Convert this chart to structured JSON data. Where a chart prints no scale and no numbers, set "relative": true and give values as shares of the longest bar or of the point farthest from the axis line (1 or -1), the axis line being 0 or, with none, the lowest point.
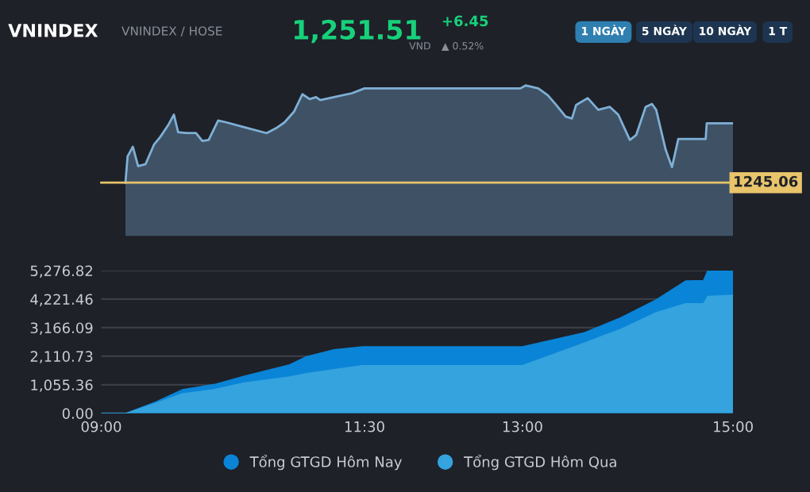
{
  "chart_data": [
    {
      "type": "area",
      "title": "VNINDEX",
      "subtitle": "VNINDEX / HOSE",
      "annotations": [
        "1,251.51",
        "VND",
        "+6.45",
        "▲ 0.52%",
        "1 NGÀY",
        "5 NGÀY",
        "10 NGÀY",
        "1 T",
        "1245.06"
      ],
      "x": [
        9.23,
        9.25,
        9.3,
        9.35,
        9.42,
        9.5,
        9.56,
        9.64,
        9.69,
        9.73,
        9.81,
        9.9,
        9.96,
        10.02,
        10.11,
        10.19,
        10.36,
        10.57,
        10.66,
        10.74,
        10.83,
        10.91,
        10.98,
        11.04,
        11.08,
        11.21,
        11.38,
        11.5,
        12.98,
        13.03,
        13.15,
        13.24,
        13.32,
        13.41,
        13.47,
        13.51,
        13.62,
        13.72,
        13.83,
        13.91,
        14.02,
        14.08,
        14.17,
        14.23,
        14.27,
        14.36,
        14.42,
        14.48,
        14.74,
        14.75,
        15.0
      ],
      "series": [
        {
          "color": "#7fb0d6",
          "values": [
            0,
            0.27,
            0.37,
            0.17,
            0.19,
            0.39,
            0.47,
            0.6,
            0.7,
            0.52,
            0.51,
            0.51,
            0.43,
            0.44,
            0.64,
            0.62,
            0.57,
            0.51,
            0.56,
            0.62,
            0.73,
            0.91,
            0.86,
            0.88,
            0.85,
            0.88,
            0.92,
            0.97,
            0.97,
            1.0,
            0.97,
            0.9,
            0.8,
            0.68,
            0.66,
            0.8,
            0.87,
            0.75,
            0.78,
            0.7,
            0.44,
            0.49,
            0.78,
            0.81,
            0.75,
            0.34,
            0.16,
            0.45,
            0.45,
            0.61,
            0.61
          ]
        }
      ],
      "xlim": [
        9,
        15
      ],
      "relative": true
    },
    {
      "type": "area",
      "x": [
        9.0,
        9.24,
        9.52,
        9.77,
        10.07,
        10.36,
        10.79,
        10.95,
        11.21,
        11.48,
        13.0,
        13.59,
        13.93,
        14.27,
        14.55,
        14.72,
        14.76,
        15.0
      ],
      "series": [
        {
          "name": "Tổng GTGD Hôm Nay",
          "color": "#0a84d6",
          "values": [
            0,
            0,
            420,
            870,
            1060,
            1370,
            1790,
            2090,
            2350,
            2460,
            2460,
            2980,
            3520,
            4190,
            4890,
            4910,
            5270,
            5270
          ]
        },
        {
          "name": "Tổng GTGD Hôm Qua",
          "color": "#34a3de",
          "values": [
            0,
            0,
            370,
            720,
            870,
            1120,
            1340,
            1470,
            1610,
            1760,
            1760,
            2600,
            3100,
            3720,
            4050,
            4050,
            4320,
            4360
          ]
        }
      ],
      "xlim": [
        9,
        15
      ],
      "ylim": [
        0,
        5276.82
      ],
      "xticks": [
        {
          "value": 9,
          "label": "09:00"
        },
        {
          "value": 11.5,
          "label": "11:30"
        },
        {
          "value": 13,
          "label": "13:00"
        },
        {
          "value": 15,
          "label": "15:00"
        }
      ],
      "yticks": [
        {
          "value": 0,
          "label": "0.00"
        },
        {
          "value": 1055.36,
          "label": "1,055.36"
        },
        {
          "value": 2110.73,
          "label": "2,110.73"
        },
        {
          "value": 3166.09,
          "label": "3,166.09"
        },
        {
          "value": 4221.46,
          "label": "4,221.46"
        },
        {
          "value": 5276.82,
          "label": "5,276.82"
        }
      ],
      "grid": "y",
      "legend": "bottom"
    }
  ]
}
